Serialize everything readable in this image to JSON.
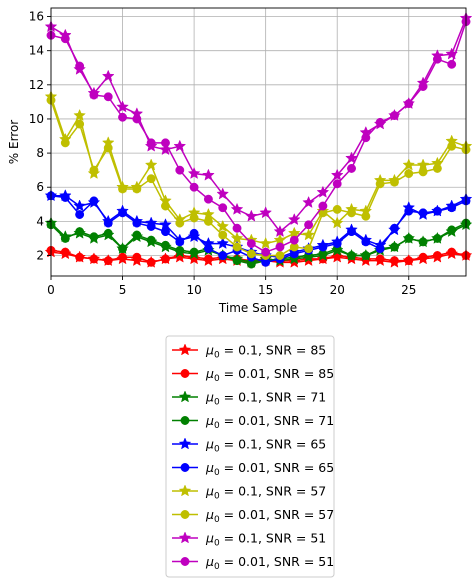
{
  "chart_data": {
    "type": "line",
    "title": "",
    "xlabel": "Time Sample",
    "ylabel": "% Error",
    "xlim": [
      0,
      29
    ],
    "ylim": [
      0.8,
      16.5
    ],
    "xticks": [
      0,
      5,
      10,
      15,
      20,
      25
    ],
    "yticks": [
      2,
      4,
      6,
      8,
      10,
      12,
      14,
      16
    ],
    "grid": true,
    "legend_position": "below",
    "x": [
      0,
      1,
      2,
      3,
      4,
      5,
      6,
      7,
      8,
      9,
      10,
      11,
      12,
      13,
      14,
      15,
      16,
      17,
      18,
      19,
      20,
      21,
      22,
      23,
      24,
      25,
      26,
      27,
      28,
      29
    ],
    "series": [
      {
        "legend_prefix": "μ",
        "legend_sub": "0",
        "legend_rest": " = 0.1, SNR = 85",
        "color": "#ff0000",
        "marker": "star",
        "values": [
          2.2,
          2.1,
          1.9,
          1.8,
          1.7,
          1.8,
          1.7,
          1.6,
          1.8,
          1.9,
          1.8,
          1.7,
          1.8,
          1.7,
          1.6,
          1.7,
          1.6,
          1.6,
          1.7,
          1.8,
          1.9,
          1.8,
          1.7,
          1.7,
          1.6,
          1.7,
          1.8,
          1.9,
          2.1,
          2.0
        ]
      },
      {
        "legend_prefix": "μ",
        "legend_sub": "0",
        "legend_rest": " = 0.01, SNR = 85",
        "color": "#ff0000",
        "marker": "circle",
        "values": [
          2.3,
          2.2,
          1.9,
          1.8,
          1.7,
          1.9,
          1.9,
          1.6,
          1.8,
          2.0,
          1.9,
          1.8,
          1.9,
          1.8,
          1.7,
          1.8,
          1.7,
          1.7,
          1.8,
          1.8,
          2.0,
          1.9,
          1.8,
          1.8,
          1.7,
          1.7,
          1.9,
          2.0,
          2.2,
          2.0
        ]
      },
      {
        "legend_prefix": "μ",
        "legend_sub": "0",
        "legend_rest": " = 0.1, SNR = 71",
        "color": "#008000",
        "marker": "star",
        "values": [
          3.9,
          3.1,
          3.3,
          3.0,
          3.2,
          2.4,
          3.1,
          2.8,
          2.5,
          2.2,
          2.1,
          2.3,
          2.0,
          1.8,
          1.6,
          1.8,
          1.7,
          1.8,
          1.9,
          2.0,
          2.3,
          2.0,
          2.0,
          2.3,
          2.5,
          3.0,
          2.8,
          3.0,
          3.4,
          3.8
        ]
      },
      {
        "legend_prefix": "μ",
        "legend_sub": "0",
        "legend_rest": " = 0.01, SNR = 71",
        "color": "#008000",
        "marker": "circle",
        "values": [
          3.8,
          3.0,
          3.4,
          3.1,
          3.3,
          2.4,
          3.2,
          2.9,
          2.6,
          2.3,
          2.2,
          2.4,
          2.0,
          1.7,
          1.5,
          1.7,
          1.8,
          1.9,
          2.0,
          2.1,
          2.4,
          2.0,
          2.0,
          2.4,
          2.5,
          3.0,
          2.8,
          3.0,
          3.5,
          3.9
        ]
      },
      {
        "legend_prefix": "μ",
        "legend_sub": "0",
        "legend_rest": " = 0.1, SNR = 65",
        "color": "#0000ff",
        "marker": "star",
        "values": [
          5.5,
          5.5,
          4.9,
          5.1,
          4.0,
          4.6,
          4.0,
          3.9,
          3.8,
          2.9,
          3.1,
          2.7,
          2.7,
          2.5,
          2.2,
          2.0,
          1.9,
          2.2,
          2.4,
          2.6,
          2.8,
          3.5,
          2.9,
          2.6,
          3.5,
          4.8,
          4.4,
          4.6,
          4.9,
          5.3
        ]
      },
      {
        "legend_prefix": "μ",
        "legend_sub": "0",
        "legend_rest": " = 0.01, SNR = 65",
        "color": "#0000ff",
        "marker": "circle",
        "values": [
          5.5,
          5.4,
          4.4,
          5.2,
          3.9,
          4.5,
          3.9,
          3.7,
          3.4,
          2.8,
          3.3,
          2.4,
          2.0,
          2.3,
          1.9,
          1.6,
          1.8,
          2.1,
          2.3,
          2.5,
          2.7,
          3.4,
          2.8,
          2.4,
          3.6,
          4.6,
          4.5,
          4.6,
          4.8,
          5.2
        ]
      },
      {
        "legend_prefix": "μ",
        "legend_sub": "0",
        "legend_rest": " = 0.1, SNR = 57",
        "color": "#bfbf00",
        "marker": "star",
        "values": [
          11.3,
          8.8,
          10.2,
          6.8,
          8.6,
          6.0,
          6.0,
          7.3,
          5.2,
          4.1,
          4.5,
          4.4,
          3.7,
          3.0,
          2.9,
          2.7,
          2.9,
          3.3,
          3.2,
          4.6,
          3.9,
          4.7,
          4.6,
          6.4,
          6.4,
          7.3,
          7.3,
          7.4,
          8.7,
          8.4
        ]
      },
      {
        "legend_prefix": "μ",
        "legend_sub": "0",
        "legend_rest": " = 0.01, SNR = 57",
        "color": "#bfbf00",
        "marker": "circle",
        "values": [
          11.1,
          8.6,
          9.7,
          7.0,
          8.3,
          5.9,
          5.9,
          6.5,
          4.9,
          3.9,
          4.2,
          4.0,
          3.2,
          2.5,
          2.1,
          2.0,
          2.0,
          2.5,
          2.4,
          4.5,
          4.7,
          4.5,
          4.3,
          6.2,
          6.3,
          6.8,
          6.9,
          7.1,
          8.4,
          8.2
        ]
      },
      {
        "legend_prefix": "μ",
        "legend_sub": "0",
        "legend_rest": " = 0.1, SNR = 51",
        "color": "#bf00bf",
        "marker": "star",
        "values": [
          15.4,
          14.9,
          12.9,
          11.5,
          12.5,
          10.7,
          10.3,
          8.4,
          8.2,
          8.4,
          6.8,
          6.7,
          5.6,
          4.7,
          4.3,
          4.5,
          3.4,
          4.1,
          5.1,
          5.7,
          6.7,
          7.7,
          9.2,
          9.7,
          10.2,
          10.9,
          12.1,
          13.7,
          13.8,
          15.9
        ]
      },
      {
        "legend_prefix": "μ",
        "legend_sub": "0",
        "legend_rest": " = 0.01, SNR = 51",
        "color": "#bf00bf",
        "marker": "circle",
        "values": [
          14.9,
          14.7,
          13.1,
          11.4,
          11.3,
          10.1,
          10.0,
          8.6,
          8.6,
          7.0,
          6.0,
          5.3,
          4.8,
          3.6,
          2.7,
          2.2,
          2.5,
          2.9,
          3.8,
          4.9,
          6.2,
          7.1,
          8.9,
          9.8,
          10.2,
          10.9,
          11.9,
          13.5,
          13.2,
          15.7
        ]
      }
    ]
  }
}
